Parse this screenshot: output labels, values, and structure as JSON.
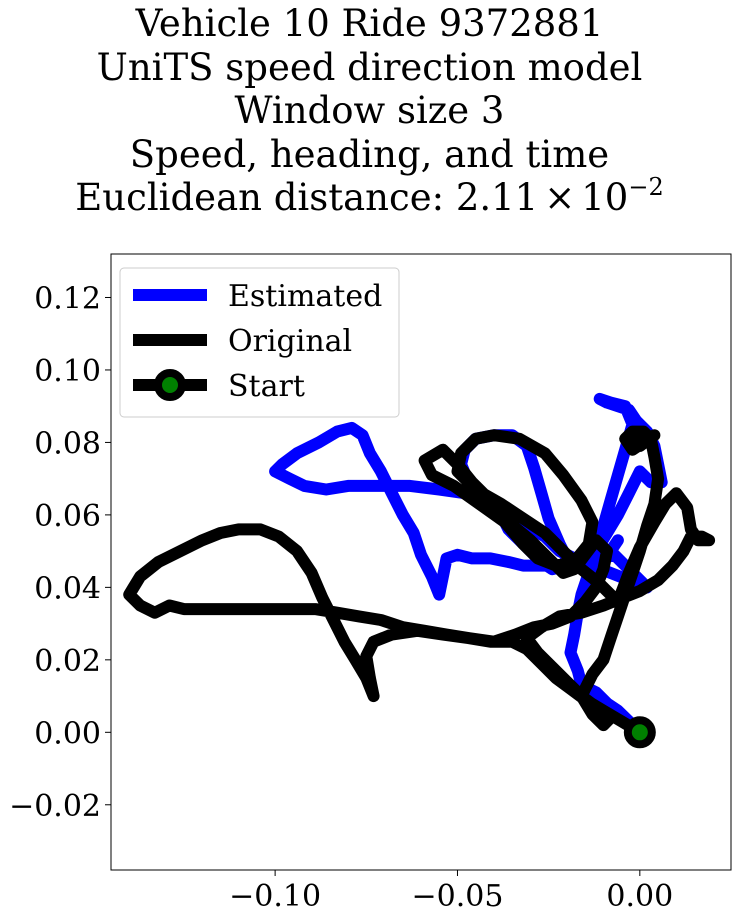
{
  "chart_data": {
    "type": "line",
    "title_lines": [
      "Vehicle 10 Ride 9372881",
      "UniTS speed direction model",
      "Window size 3",
      "Speed, heading, and time"
    ],
    "distance": {
      "prefix": "Euclidean distance: ",
      "mantissa": "2.11",
      "times": "×",
      "base": "10",
      "exponent": "−2"
    },
    "xlim": [
      -0.145,
      0.025
    ],
    "ylim": [
      -0.038,
      0.132
    ],
    "x_ticks": [
      -0.1,
      -0.05,
      0.0
    ],
    "x_tick_labels": [
      "−0.10",
      "−0.05",
      "0.00"
    ],
    "y_ticks": [
      -0.02,
      0.0,
      0.02,
      0.04,
      0.06,
      0.08,
      0.1,
      0.12
    ],
    "y_tick_labels": [
      "−0.02",
      "0.00",
      "0.02",
      "0.04",
      "0.06",
      "0.08",
      "0.10",
      "0.12"
    ],
    "grid": false,
    "legend_position": "top-left",
    "series": [
      {
        "name": "Estimated",
        "color": "#0000ff",
        "points": [
          [
            0.0,
            0.0
          ],
          [
            -0.003,
            0.003
          ],
          [
            -0.006,
            0.006
          ],
          [
            -0.009,
            0.008
          ],
          [
            -0.012,
            0.011
          ],
          [
            -0.016,
            0.013
          ],
          [
            -0.017,
            0.017
          ],
          [
            -0.019,
            0.022
          ],
          [
            -0.018,
            0.027
          ],
          [
            -0.017,
            0.033
          ],
          [
            -0.016,
            0.038
          ],
          [
            -0.014,
            0.044
          ],
          [
            -0.012,
            0.05
          ],
          [
            -0.01,
            0.057
          ],
          [
            -0.008,
            0.064
          ],
          [
            -0.006,
            0.071
          ],
          [
            -0.004,
            0.078
          ],
          [
            -0.002,
            0.085
          ],
          [
            -0.004,
            0.09
          ],
          [
            -0.008,
            0.091
          ],
          [
            -0.011,
            0.092
          ],
          [
            -0.009,
            0.091
          ],
          [
            -0.006,
            0.09
          ],
          [
            -0.003,
            0.089
          ],
          [
            -0.001,
            0.086
          ],
          [
            0.002,
            0.083
          ],
          [
            0.004,
            0.079
          ],
          [
            0.005,
            0.074
          ],
          [
            0.006,
            0.069
          ],
          [
            0.003,
            0.069
          ],
          [
            0.0,
            0.072
          ],
          [
            -0.003,
            0.066
          ],
          [
            -0.006,
            0.06
          ],
          [
            -0.009,
            0.055
          ],
          [
            -0.012,
            0.05
          ],
          [
            -0.016,
            0.047
          ],
          [
            -0.02,
            0.046
          ],
          [
            -0.024,
            0.045
          ],
          [
            -0.027,
            0.047
          ],
          [
            -0.03,
            0.05
          ],
          [
            -0.033,
            0.053
          ],
          [
            -0.036,
            0.056
          ],
          [
            -0.038,
            0.06
          ],
          [
            -0.043,
            0.064
          ],
          [
            -0.047,
            0.069
          ],
          [
            -0.049,
            0.074
          ],
          [
            -0.048,
            0.078
          ],
          [
            -0.045,
            0.081
          ],
          [
            -0.04,
            0.082
          ],
          [
            -0.035,
            0.082
          ],
          [
            -0.031,
            0.079
          ],
          [
            -0.029,
            0.073
          ],
          [
            -0.027,
            0.066
          ],
          [
            -0.025,
            0.059
          ],
          [
            -0.022,
            0.052
          ],
          [
            -0.02,
            0.048
          ],
          [
            -0.017,
            0.046
          ],
          [
            -0.013,
            0.047
          ],
          [
            -0.01,
            0.048
          ],
          [
            -0.007,
            0.049
          ],
          [
            -0.004,
            0.046
          ],
          [
            -0.001,
            0.043
          ],
          [
            0.002,
            0.04
          ],
          [
            -0.003,
            0.042
          ],
          [
            -0.008,
            0.044
          ],
          [
            -0.013,
            0.046
          ],
          [
            -0.018,
            0.046
          ],
          [
            -0.023,
            0.046
          ],
          [
            -0.028,
            0.046
          ],
          [
            -0.032,
            0.046
          ],
          [
            -0.036,
            0.047
          ],
          [
            -0.041,
            0.048
          ],
          [
            -0.046,
            0.048
          ],
          [
            -0.05,
            0.049
          ],
          [
            -0.053,
            0.048
          ],
          [
            -0.054,
            0.043
          ],
          [
            -0.055,
            0.038
          ],
          [
            -0.057,
            0.043
          ],
          [
            -0.06,
            0.049
          ],
          [
            -0.062,
            0.055
          ],
          [
            -0.065,
            0.06
          ],
          [
            -0.068,
            0.066
          ],
          [
            -0.071,
            0.072
          ],
          [
            -0.074,
            0.077
          ],
          [
            -0.076,
            0.082
          ],
          [
            -0.079,
            0.084
          ],
          [
            -0.083,
            0.083
          ],
          [
            -0.088,
            0.08
          ],
          [
            -0.094,
            0.077
          ],
          [
            -0.098,
            0.074
          ],
          [
            -0.1,
            0.072
          ],
          [
            -0.096,
            0.07
          ],
          [
            -0.092,
            0.068
          ],
          [
            -0.086,
            0.067
          ],
          [
            -0.08,
            0.068
          ],
          [
            -0.072,
            0.068
          ],
          [
            -0.063,
            0.068
          ],
          [
            -0.055,
            0.067
          ],
          [
            -0.048,
            0.066
          ],
          [
            -0.042,
            0.064
          ],
          [
            -0.036,
            0.061
          ],
          [
            -0.031,
            0.057
          ],
          [
            -0.026,
            0.054
          ],
          [
            -0.022,
            0.05
          ],
          [
            -0.018,
            0.048
          ],
          [
            -0.013,
            0.047
          ],
          [
            -0.008,
            0.05
          ],
          [
            -0.006,
            0.053
          ]
        ]
      },
      {
        "name": "Original",
        "color": "#000000",
        "points": [
          [
            0.0,
            0.0
          ],
          [
            -0.005,
            0.003
          ],
          [
            -0.01,
            0.006
          ],
          [
            -0.015,
            0.009
          ],
          [
            -0.019,
            0.012
          ],
          [
            -0.023,
            0.015
          ],
          [
            -0.027,
            0.019
          ],
          [
            -0.031,
            0.023
          ],
          [
            -0.035,
            0.025
          ],
          [
            -0.041,
            0.025
          ],
          [
            -0.047,
            0.026
          ],
          [
            -0.053,
            0.027
          ],
          [
            -0.059,
            0.028
          ],
          [
            -0.065,
            0.029
          ],
          [
            -0.071,
            0.031
          ],
          [
            -0.077,
            0.032
          ],
          [
            -0.083,
            0.033
          ],
          [
            -0.089,
            0.034
          ],
          [
            -0.095,
            0.034
          ],
          [
            -0.101,
            0.034
          ],
          [
            -0.107,
            0.034
          ],
          [
            -0.113,
            0.034
          ],
          [
            -0.119,
            0.034
          ],
          [
            -0.125,
            0.034
          ],
          [
            -0.129,
            0.035
          ],
          [
            -0.133,
            0.033
          ],
          [
            -0.137,
            0.035
          ],
          [
            -0.14,
            0.038
          ],
          [
            -0.137,
            0.043
          ],
          [
            -0.132,
            0.047
          ],
          [
            -0.126,
            0.05
          ],
          [
            -0.12,
            0.053
          ],
          [
            -0.115,
            0.055
          ],
          [
            -0.11,
            0.056
          ],
          [
            -0.104,
            0.056
          ],
          [
            -0.099,
            0.054
          ],
          [
            -0.094,
            0.05
          ],
          [
            -0.09,
            0.044
          ],
          [
            -0.087,
            0.037
          ],
          [
            -0.084,
            0.031
          ],
          [
            -0.081,
            0.025
          ],
          [
            -0.078,
            0.02
          ],
          [
            -0.075,
            0.015
          ],
          [
            -0.073,
            0.01
          ],
          [
            -0.074,
            0.015
          ],
          [
            -0.075,
            0.021
          ],
          [
            -0.073,
            0.025
          ],
          [
            -0.068,
            0.027
          ],
          [
            -0.061,
            0.028
          ],
          [
            -0.054,
            0.027
          ],
          [
            -0.047,
            0.026
          ],
          [
            -0.04,
            0.025
          ],
          [
            -0.034,
            0.027
          ],
          [
            -0.029,
            0.029
          ],
          [
            -0.024,
            0.03
          ],
          [
            -0.019,
            0.032
          ],
          [
            -0.015,
            0.036
          ],
          [
            -0.012,
            0.04
          ],
          [
            -0.01,
            0.045
          ],
          [
            -0.009,
            0.05
          ],
          [
            -0.012,
            0.053
          ],
          [
            -0.015,
            0.049
          ],
          [
            -0.018,
            0.045
          ],
          [
            -0.021,
            0.044
          ],
          [
            -0.025,
            0.048
          ],
          [
            -0.03,
            0.053
          ],
          [
            -0.036,
            0.058
          ],
          [
            -0.041,
            0.064
          ],
          [
            -0.046,
            0.069
          ],
          [
            -0.05,
            0.074
          ],
          [
            -0.054,
            0.078
          ],
          [
            -0.059,
            0.075
          ],
          [
            -0.057,
            0.071
          ],
          [
            -0.051,
            0.068
          ],
          [
            -0.044,
            0.063
          ],
          [
            -0.037,
            0.058
          ],
          [
            -0.032,
            0.052
          ],
          [
            -0.028,
            0.048
          ],
          [
            -0.023,
            0.046
          ],
          [
            -0.018,
            0.047
          ],
          [
            -0.014,
            0.052
          ],
          [
            -0.013,
            0.058
          ],
          [
            -0.016,
            0.064
          ],
          [
            -0.021,
            0.071
          ],
          [
            -0.026,
            0.077
          ],
          [
            -0.033,
            0.081
          ],
          [
            -0.04,
            0.082
          ],
          [
            -0.045,
            0.081
          ],
          [
            -0.049,
            0.077
          ],
          [
            -0.05,
            0.072
          ],
          [
            -0.045,
            0.067
          ],
          [
            -0.038,
            0.063
          ],
          [
            -0.032,
            0.059
          ],
          [
            -0.026,
            0.055
          ],
          [
            -0.021,
            0.05
          ],
          [
            -0.016,
            0.045
          ],
          [
            -0.011,
            0.041
          ],
          [
            -0.006,
            0.036
          ],
          [
            -0.003,
            0.044
          ],
          [
            0.0,
            0.051
          ],
          [
            0.004,
            0.058
          ],
          [
            0.007,
            0.063
          ],
          [
            0.01,
            0.066
          ],
          [
            0.013,
            0.062
          ],
          [
            0.014,
            0.056
          ],
          [
            0.016,
            0.053
          ],
          [
            0.019,
            0.053
          ],
          [
            0.017,
            0.054
          ],
          [
            0.014,
            0.054
          ],
          [
            0.012,
            0.05
          ],
          [
            0.009,
            0.046
          ],
          [
            0.005,
            0.042
          ],
          [
            0.0,
            0.039
          ],
          [
            -0.005,
            0.037
          ],
          [
            -0.01,
            0.035
          ],
          [
            -0.016,
            0.033
          ],
          [
            -0.022,
            0.032
          ],
          [
            -0.027,
            0.029
          ],
          [
            -0.031,
            0.026
          ],
          [
            -0.028,
            0.022
          ],
          [
            -0.024,
            0.018
          ],
          [
            -0.02,
            0.014
          ],
          [
            -0.016,
            0.01
          ],
          [
            -0.012,
            0.007
          ],
          [
            -0.008,
            0.004
          ],
          [
            -0.01,
            0.002
          ],
          [
            -0.013,
            0.005
          ],
          [
            -0.016,
            0.01
          ],
          [
            -0.013,
            0.016
          ],
          [
            -0.01,
            0.02
          ],
          [
            -0.008,
            0.026
          ],
          [
            -0.006,
            0.032
          ],
          [
            -0.004,
            0.038
          ],
          [
            -0.002,
            0.044
          ],
          [
            0.0,
            0.05
          ],
          [
            0.002,
            0.057
          ],
          [
            0.004,
            0.063
          ],
          [
            0.005,
            0.07
          ],
          [
            0.004,
            0.076
          ],
          [
            0.003,
            0.081
          ],
          [
            0.001,
            0.083
          ],
          [
            -0.002,
            0.083
          ],
          [
            -0.004,
            0.081
          ],
          [
            -0.002,
            0.078
          ],
          [
            0.001,
            0.08
          ],
          [
            0.004,
            0.082
          ],
          [
            0.0,
            0.079
          ],
          [
            -0.003,
            0.082
          ]
        ]
      }
    ],
    "start_point": {
      "x": 0.0,
      "y": 0.0,
      "name": "Start",
      "marker_color": "#008000",
      "edge_color": "#000000"
    },
    "legend": [
      {
        "label": "Estimated",
        "color": "#0000ff",
        "kind": "line"
      },
      {
        "label": "Original",
        "color": "#000000",
        "kind": "line"
      },
      {
        "label": "Start",
        "color": "#000000",
        "kind": "marker"
      }
    ]
  }
}
